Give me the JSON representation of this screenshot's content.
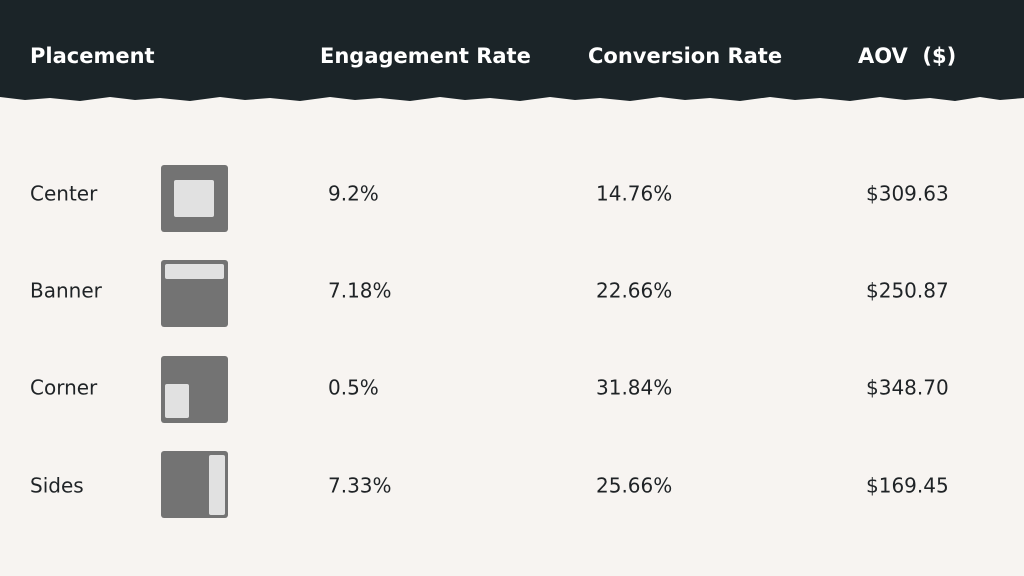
{
  "table": {
    "header": [
      "Placement",
      "Engagement Rate",
      "Conversion Rate",
      "AOV  ($)"
    ],
    "rows": [
      [
        "Center",
        "9.2%",
        "14.76%",
        "$309.63"
      ],
      [
        "Banner",
        "7.18%",
        "22.66%",
        "$250.87"
      ],
      [
        "Corner",
        "0.5%",
        "31.84%",
        "$348.70"
      ],
      [
        "Sides",
        "7.33%",
        "25.66%",
        "$169.45"
      ]
    ]
  }
}
